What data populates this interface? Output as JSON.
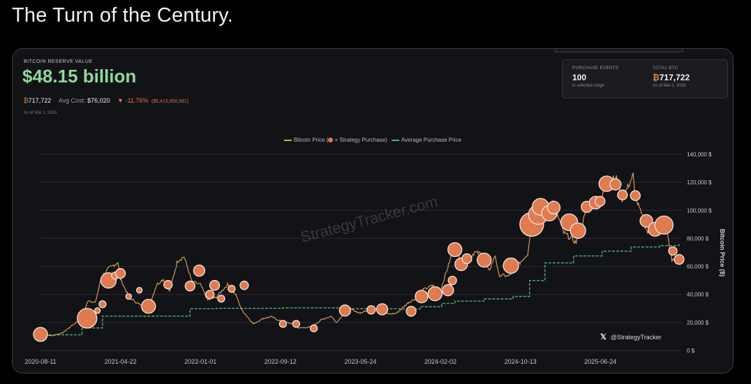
{
  "headline": "The Turn of the Century.",
  "reserve": {
    "label": "BITCOIN RESERVE VALUE",
    "value": "$48.15 billion",
    "btc_symbol": "₿",
    "btc_amount": "717,722",
    "avg_cost_label": "Avg Cost:",
    "avg_cost": "$76,020",
    "change": "▼ -11.76%",
    "loss": "($6,413,956,581)",
    "as_of": "As of Mar 1, 2026"
  },
  "summary": {
    "events_label": "PURCHASE EVENTS",
    "events_value": "100",
    "events_sub": "in selected range",
    "total_label": "TOTAL BTC",
    "total_symbol": "₿",
    "total_value": "717,722",
    "total_sub": "As of Mar 1, 2026"
  },
  "legend": {
    "price": "Bitcoin Price (",
    "purchase": " = Strategy Purchase)",
    "avg": "Average Purchase Price"
  },
  "watermark": "StrategyTracker.com",
  "handle": {
    "icon": "𝕏",
    "text": "@StrategyTracker"
  },
  "colors": {
    "price_line": "#e0a35a",
    "bubble": "#e07a4f",
    "bubble_stroke": "#f4e6dc",
    "avg_line": "#4fb07a",
    "value_green": "#8fd99a"
  },
  "chart_data": {
    "type": "line",
    "ylabel": "Bitcoin Price ($)",
    "xlim": [
      "2020-08-11",
      "2026-03-01"
    ],
    "ylim": [
      0,
      140000
    ],
    "x_ticks": [
      "2020-08-11",
      "2021-04-22",
      "2022-01-01",
      "2022-09-12",
      "2023-05-24",
      "2024-02-02",
      "2024-10-13",
      "2025-06-24"
    ],
    "y_ticks": [
      0,
      20000,
      40000,
      60000,
      80000,
      100000,
      120000,
      140000
    ],
    "y_tick_labels": [
      "0 $",
      "20,000 $",
      "40,000 $",
      "60,000 $",
      "80,000 $",
      "100,000 $",
      "120,000 $",
      "140,000 $"
    ],
    "grid": true,
    "legend_position": "top-center",
    "price_series": {
      "name": "Bitcoin Price",
      "points": [
        [
          "2020-08-11",
          11500
        ],
        [
          "2020-09-15",
          10500
        ],
        [
          "2020-10-20",
          12500
        ],
        [
          "2020-11-20",
          18000
        ],
        [
          "2020-12-20",
          23000
        ],
        [
          "2021-01-10",
          36000
        ],
        [
          "2021-02-01",
          34000
        ],
        [
          "2021-02-20",
          52000
        ],
        [
          "2021-03-13",
          58000
        ],
        [
          "2021-04-14",
          63000
        ],
        [
          "2021-04-22",
          51000
        ],
        [
          "2021-05-19",
          38000
        ],
        [
          "2021-06-20",
          33000
        ],
        [
          "2021-07-20",
          30500
        ],
        [
          "2021-08-15",
          47000
        ],
        [
          "2021-09-05",
          51000
        ],
        [
          "2021-09-25",
          42000
        ],
        [
          "2021-10-20",
          64000
        ],
        [
          "2021-11-10",
          67000
        ],
        [
          "2021-12-05",
          49000
        ],
        [
          "2022-01-01",
          47000
        ],
        [
          "2022-01-24",
          36000
        ],
        [
          "2022-02-20",
          38000
        ],
        [
          "2022-03-28",
          47000
        ],
        [
          "2022-04-25",
          39000
        ],
        [
          "2022-05-12",
          29000
        ],
        [
          "2022-06-18",
          19000
        ],
        [
          "2022-07-20",
          23000
        ],
        [
          "2022-08-15",
          24000
        ],
        [
          "2022-09-12",
          21000
        ],
        [
          "2022-10-20",
          19000
        ],
        [
          "2022-11-10",
          16000
        ],
        [
          "2022-12-20",
          16800
        ],
        [
          "2023-01-20",
          22000
        ],
        [
          "2023-02-20",
          24500
        ],
        [
          "2023-03-10",
          20000
        ],
        [
          "2023-04-14",
          30500
        ],
        [
          "2023-05-24",
          26500
        ],
        [
          "2023-06-25",
          30500
        ],
        [
          "2023-07-15",
          30000
        ],
        [
          "2023-08-20",
          26000
        ],
        [
          "2023-09-15",
          26500
        ],
        [
          "2023-10-25",
          34500
        ],
        [
          "2023-11-20",
          37500
        ],
        [
          "2023-12-10",
          43500
        ],
        [
          "2024-01-10",
          46500
        ],
        [
          "2024-01-23",
          39500
        ],
        [
          "2024-02-02",
          43000
        ],
        [
          "2024-02-28",
          61000
        ],
        [
          "2024-03-14",
          72000
        ],
        [
          "2024-04-18",
          62000
        ],
        [
          "2024-05-20",
          70000
        ],
        [
          "2024-06-10",
          69000
        ],
        [
          "2024-07-05",
          56500
        ],
        [
          "2024-07-25",
          68000
        ],
        [
          "2024-08-05",
          54000
        ],
        [
          "2024-09-06",
          53000
        ],
        [
          "2024-10-13",
          63000
        ],
        [
          "2024-11-05",
          69000
        ],
        [
          "2024-11-22",
          98000
        ],
        [
          "2024-12-17",
          106000
        ],
        [
          "2025-01-10",
          94000
        ],
        [
          "2025-01-20",
          108000
        ],
        [
          "2025-02-28",
          84000
        ],
        [
          "2025-04-08",
          77000
        ],
        [
          "2025-05-20",
          106000
        ],
        [
          "2025-06-24",
          105000
        ],
        [
          "2025-07-14",
          121000
        ],
        [
          "2025-08-14",
          123000
        ],
        [
          "2025-09-01",
          108000
        ],
        [
          "2025-10-06",
          125000
        ],
        [
          "2025-10-11",
          111000
        ],
        [
          "2025-11-21",
          84000
        ],
        [
          "2025-12-15",
          87000
        ],
        [
          "2026-01-14",
          96000
        ],
        [
          "2026-02-06",
          64000
        ],
        [
          "2026-03-01",
          66000
        ]
      ]
    },
    "avg_purchase_series": {
      "name": "Average Purchase Price",
      "points": [
        [
          "2020-08-11",
          11200
        ],
        [
          "2020-12-21",
          16100
        ],
        [
          "2021-02-24",
          24500
        ],
        [
          "2021-11-29",
          29800
        ],
        [
          "2022-02-20",
          30100
        ],
        [
          "2022-09-20",
          30400
        ],
        [
          "2023-03-27",
          29800
        ],
        [
          "2023-09-24",
          29600
        ],
        [
          "2023-11-30",
          31200
        ],
        [
          "2024-02-06",
          33600
        ],
        [
          "2024-03-19",
          35200
        ],
        [
          "2024-06-20",
          36800
        ],
        [
          "2024-09-20",
          38600
        ],
        [
          "2024-11-11",
          49900
        ],
        [
          "2024-12-30",
          62500
        ],
        [
          "2025-03-31",
          67500
        ],
        [
          "2025-06-30",
          70900
        ],
        [
          "2025-09-30",
          73900
        ],
        [
          "2025-12-29",
          74900
        ],
        [
          "2026-03-01",
          76020
        ]
      ]
    },
    "purchase_events_shown": [
      [
        "2020-08-11",
        11500,
        10
      ],
      [
        "2021-01-06",
        23000,
        14
      ],
      [
        "2021-02-08",
        28500,
        4
      ],
      [
        "2021-02-24",
        33000,
        5
      ],
      [
        "2021-03-15",
        50000,
        11
      ],
      [
        "2021-04-05",
        53500,
        5
      ],
      [
        "2021-04-22",
        55000,
        7
      ],
      [
        "2021-05-18",
        38500,
        4
      ],
      [
        "2021-06-21",
        43000,
        4
      ],
      [
        "2021-07-20",
        31500,
        10
      ],
      [
        "2021-09-20",
        47000,
        6
      ],
      [
        "2021-11-29",
        46000,
        7
      ],
      [
        "2021-12-28",
        57000,
        8
      ],
      [
        "2022-01-31",
        40000,
        6
      ],
      [
        "2022-02-15",
        46500,
        7
      ],
      [
        "2022-03-08",
        37000,
        5
      ],
      [
        "2022-04-10",
        44000,
        5
      ],
      [
        "2022-05-20",
        46500,
        6
      ],
      [
        "2022-09-20",
        19000,
        5
      ],
      [
        "2022-11-01",
        19000,
        5
      ],
      [
        "2022-12-27",
        15800,
        5
      ],
      [
        "2023-04-05",
        28500,
        8
      ],
      [
        "2023-06-27",
        29000,
        6
      ],
      [
        "2023-08-01",
        29400,
        8
      ],
      [
        "2023-11-01",
        28000,
        7
      ],
      [
        "2023-12-04",
        38500,
        9
      ],
      [
        "2024-01-16",
        40500,
        10
      ],
      [
        "2024-02-26",
        43000,
        8
      ],
      [
        "2024-03-11",
        50000,
        6
      ],
      [
        "2024-03-19",
        72000,
        10
      ],
      [
        "2024-04-08",
        61500,
        9
      ],
      [
        "2024-04-26",
        65500,
        7
      ],
      [
        "2024-06-20",
        64500,
        10
      ],
      [
        "2024-09-13",
        60500,
        11
      ],
      [
        "2024-11-18",
        90000,
        17
      ],
      [
        "2024-12-09",
        97000,
        14
      ],
      [
        "2024-12-16",
        102500,
        12
      ],
      [
        "2025-01-13",
        98000,
        11
      ],
      [
        "2025-01-27",
        102000,
        9
      ],
      [
        "2025-03-17",
        91500,
        12
      ],
      [
        "2025-04-14",
        85500,
        11
      ],
      [
        "2025-05-12",
        102500,
        8
      ],
      [
        "2025-06-09",
        105500,
        9
      ],
      [
        "2025-06-23",
        106500,
        7
      ],
      [
        "2025-07-14",
        119000,
        11
      ],
      [
        "2025-08-11",
        118500,
        8
      ],
      [
        "2025-09-02",
        111000,
        7
      ],
      [
        "2025-10-13",
        110500,
        7
      ],
      [
        "2025-11-17",
        92500,
        9
      ],
      [
        "2025-12-15",
        86500,
        10
      ],
      [
        "2026-01-12",
        89500,
        13
      ],
      [
        "2026-02-09",
        71000,
        6
      ],
      [
        "2026-03-01",
        65000,
        7
      ]
    ]
  }
}
